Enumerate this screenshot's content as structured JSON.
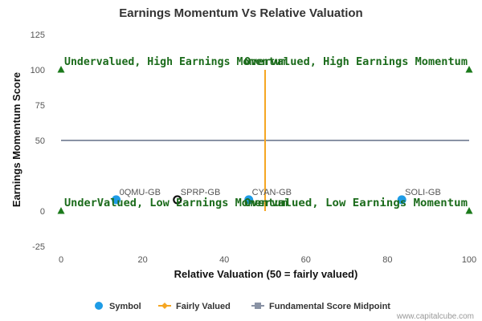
{
  "chart_data": {
    "type": "scatter",
    "title": "Earnings Momentum Vs Relative Valuation",
    "xlabel": "Relative Valuation (50 = fairly valued)",
    "ylabel": "Earnings Momentum Score",
    "xlim": [
      0,
      100
    ],
    "ylim": [
      -25,
      125
    ],
    "x_ticks": [
      "0",
      "20",
      "40",
      "60",
      "80",
      "100"
    ],
    "y_ticks": [
      "-25",
      "0",
      "50",
      "75",
      "100",
      "125"
    ],
    "grid": false,
    "legend_position": "bottom-center",
    "colors": {
      "symbol": "#1e9ce6",
      "fairly_valued": "#f5a623",
      "midpoint": "#8a93a5",
      "quadrant_text": "#1b6b1b"
    },
    "series": [
      {
        "name": "Symbol",
        "points": [
          {
            "label": "0QMU-GB",
            "x": 13.5,
            "y": 8
          },
          {
            "label": "CYAN-GB",
            "x": 46,
            "y": 8
          },
          {
            "label": "SOLI-GB",
            "x": 83.5,
            "y": 8
          }
        ]
      },
      {
        "name": "SPRP-GB",
        "points": [
          {
            "label": "SPRP-GB",
            "x": 28.5,
            "y": 8
          }
        ]
      },
      {
        "name": "Fairly Valued",
        "points": [
          {
            "x": 50,
            "y": 0
          },
          {
            "x": 50,
            "y": 100
          }
        ]
      },
      {
        "name": "Fundamental Score Midpoint",
        "points": [
          {
            "x": 0,
            "y": 50
          },
          {
            "x": 100,
            "y": 50
          }
        ]
      }
    ],
    "quadrant_markers": [
      {
        "x": 0,
        "y": 100
      },
      {
        "x": 100,
        "y": 100
      },
      {
        "x": 0,
        "y": 0
      },
      {
        "x": 100,
        "y": 0
      }
    ],
    "quadrant_labels": [
      {
        "text": "Undervalued, High Earnings Momentum",
        "x": 0,
        "y": 100,
        "anchor": "start"
      },
      {
        "text": "Overvalued, High Earnings Momentum",
        "x": 100,
        "y": 100,
        "anchor": "end"
      },
      {
        "text": "UnderValued, Low Earnings Momentum",
        "x": 0,
        "y": 0,
        "anchor": "start"
      },
      {
        "text": "Overvalued, Low Earnings Momentum",
        "x": 100,
        "y": 0,
        "anchor": "end"
      }
    ],
    "legend": [
      "Symbol",
      "Fairly Valued",
      "Fundamental Score Midpoint"
    ]
  },
  "credit": "www.capitalcube.com"
}
